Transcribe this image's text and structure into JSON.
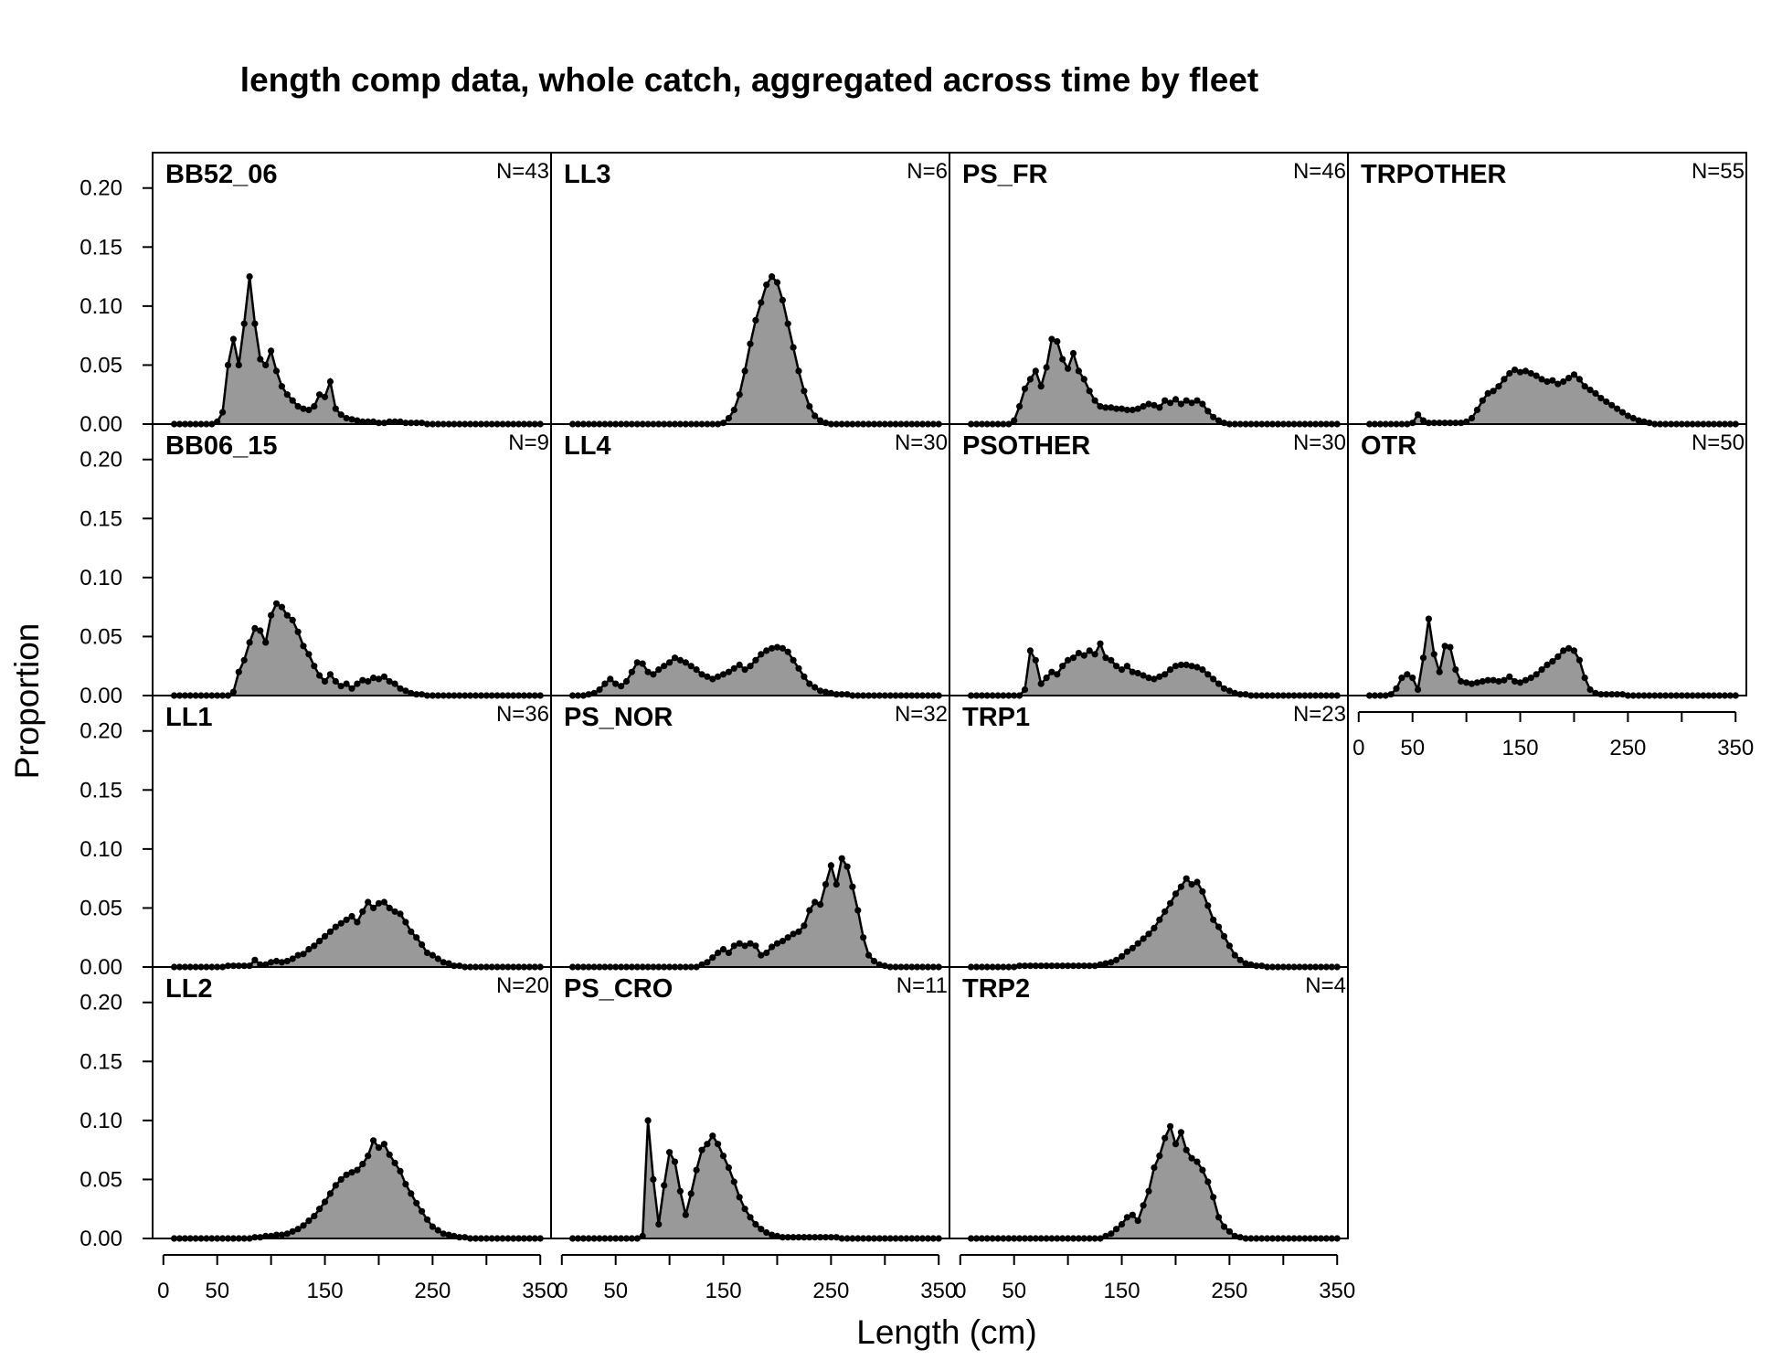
{
  "chart_data": {
    "type": "area",
    "title": "length comp data, whole catch, aggregated across time by fleet",
    "xlabel": "Length (cm)",
    "ylabel": "Proportion",
    "xlim": [
      -10,
      360
    ],
    "ylim": [
      0,
      0.23
    ],
    "x_ticks": [
      0,
      50,
      150,
      250,
      350
    ],
    "y_ticks": [
      "0.00",
      "0.05",
      "0.10",
      "0.15",
      "0.20"
    ],
    "fill_color": "#999999",
    "line_color": "#000000",
    "layout": "4x4 grid, panels filled column-wise",
    "panels": [
      {
        "name": "BB52_06",
        "n_label": "N=43",
        "row": 0,
        "col": 0,
        "x_start": 10,
        "x_step": 5,
        "values": [
          0,
          0,
          0,
          0,
          0,
          0,
          0,
          0,
          0.002,
          0.01,
          0.05,
          0.072,
          0.05,
          0.085,
          0.125,
          0.085,
          0.055,
          0.05,
          0.062,
          0.045,
          0.032,
          0.025,
          0.02,
          0.015,
          0.013,
          0.012,
          0.015,
          0.025,
          0.023,
          0.036,
          0.013,
          0.008,
          0.005,
          0.004,
          0.003,
          0.002,
          0.002,
          0.002,
          0.001,
          0.001,
          0.002,
          0.002,
          0.002,
          0.001,
          0.001,
          0.001,
          0.001,
          0,
          0,
          0,
          0,
          0,
          0,
          0,
          0,
          0,
          0,
          0,
          0,
          0,
          0,
          0,
          0,
          0,
          0,
          0,
          0,
          0,
          0
        ]
      },
      {
        "name": "BB06_15",
        "n_label": "N=9",
        "row": 1,
        "col": 0,
        "x_start": 10,
        "x_step": 5,
        "values": [
          0,
          0,
          0,
          0,
          0,
          0,
          0,
          0,
          0,
          0,
          0,
          0.003,
          0.02,
          0.03,
          0.045,
          0.057,
          0.055,
          0.045,
          0.068,
          0.078,
          0.075,
          0.068,
          0.064,
          0.054,
          0.042,
          0.035,
          0.025,
          0.017,
          0.012,
          0.018,
          0.012,
          0.008,
          0.01,
          0.006,
          0.01,
          0.013,
          0.012,
          0.015,
          0.014,
          0.016,
          0.012,
          0.01,
          0.006,
          0.004,
          0.002,
          0.001,
          0.001,
          0,
          0,
          0,
          0,
          0,
          0,
          0,
          0,
          0,
          0,
          0,
          0,
          0,
          0,
          0,
          0,
          0,
          0,
          0,
          0,
          0,
          0
        ]
      },
      {
        "name": "LL1",
        "n_label": "N=36",
        "row": 2,
        "col": 0,
        "x_start": 10,
        "x_step": 5,
        "values": [
          0,
          0,
          0,
          0,
          0,
          0,
          0,
          0,
          0,
          0,
          0.001,
          0.001,
          0.001,
          0.001,
          0.001,
          0.006,
          0.002,
          0.002,
          0.004,
          0.005,
          0.004,
          0.005,
          0.007,
          0.01,
          0.011,
          0.015,
          0.018,
          0.022,
          0.026,
          0.03,
          0.034,
          0.037,
          0.04,
          0.043,
          0.038,
          0.047,
          0.055,
          0.05,
          0.054,
          0.055,
          0.05,
          0.047,
          0.045,
          0.038,
          0.03,
          0.025,
          0.019,
          0.012,
          0.01,
          0.007,
          0.004,
          0.003,
          0.001,
          0.001,
          0,
          0,
          0,
          0,
          0,
          0,
          0,
          0,
          0,
          0,
          0,
          0,
          0,
          0,
          0
        ]
      },
      {
        "name": "LL2",
        "n_label": "N=20",
        "row": 3,
        "col": 0,
        "x_start": 10,
        "x_step": 5,
        "values": [
          0,
          0,
          0,
          0,
          0,
          0,
          0,
          0,
          0,
          0,
          0,
          0,
          0,
          0,
          0,
          0.001,
          0.001,
          0.002,
          0.002,
          0.003,
          0.003,
          0.004,
          0.006,
          0.008,
          0.011,
          0.015,
          0.019,
          0.025,
          0.031,
          0.038,
          0.045,
          0.05,
          0.054,
          0.056,
          0.058,
          0.063,
          0.07,
          0.083,
          0.077,
          0.08,
          0.071,
          0.064,
          0.057,
          0.046,
          0.038,
          0.03,
          0.023,
          0.016,
          0.01,
          0.007,
          0.004,
          0.003,
          0.002,
          0.001,
          0.001,
          0,
          0,
          0,
          0,
          0,
          0,
          0,
          0,
          0,
          0,
          0,
          0,
          0,
          0
        ]
      },
      {
        "name": "LL3",
        "n_label": "N=6",
        "row": 0,
        "col": 1,
        "x_start": 10,
        "x_step": 5,
        "values": [
          0,
          0,
          0,
          0,
          0,
          0,
          0,
          0,
          0,
          0,
          0,
          0,
          0,
          0,
          0,
          0,
          0,
          0,
          0,
          0,
          0,
          0,
          0,
          0,
          0,
          0,
          0,
          0,
          0.001,
          0.005,
          0.012,
          0.025,
          0.045,
          0.068,
          0.088,
          0.103,
          0.118,
          0.125,
          0.12,
          0.105,
          0.085,
          0.065,
          0.045,
          0.028,
          0.015,
          0.007,
          0.003,
          0.001,
          0,
          0,
          0,
          0,
          0,
          0,
          0,
          0,
          0,
          0,
          0,
          0,
          0,
          0,
          0,
          0,
          0,
          0,
          0,
          0,
          0
        ]
      },
      {
        "name": "LL4",
        "n_label": "N=30",
        "row": 1,
        "col": 1,
        "x_start": 10,
        "x_step": 5,
        "values": [
          0,
          0,
          0,
          0.001,
          0.002,
          0.005,
          0.01,
          0.014,
          0.01,
          0.008,
          0.012,
          0.02,
          0.028,
          0.027,
          0.02,
          0.018,
          0.022,
          0.025,
          0.028,
          0.032,
          0.03,
          0.028,
          0.025,
          0.022,
          0.018,
          0.016,
          0.014,
          0.016,
          0.018,
          0.02,
          0.023,
          0.026,
          0.022,
          0.025,
          0.03,
          0.035,
          0.038,
          0.04,
          0.041,
          0.04,
          0.037,
          0.03,
          0.023,
          0.016,
          0.01,
          0.007,
          0.004,
          0.003,
          0.002,
          0.001,
          0.001,
          0.001,
          0,
          0,
          0,
          0,
          0,
          0,
          0,
          0,
          0,
          0,
          0,
          0,
          0,
          0,
          0,
          0,
          0
        ]
      },
      {
        "name": "PS_NOR",
        "n_label": "N=32",
        "row": 2,
        "col": 1,
        "x_start": 10,
        "x_step": 5,
        "values": [
          0,
          0,
          0,
          0,
          0,
          0,
          0,
          0,
          0,
          0,
          0,
          0,
          0,
          0,
          0,
          0,
          0,
          0,
          0,
          0,
          0,
          0,
          0,
          0,
          0.002,
          0.004,
          0.008,
          0.012,
          0.015,
          0.012,
          0.018,
          0.02,
          0.018,
          0.02,
          0.018,
          0.01,
          0.012,
          0.017,
          0.02,
          0.022,
          0.025,
          0.028,
          0.03,
          0.035,
          0.048,
          0.055,
          0.053,
          0.07,
          0.086,
          0.07,
          0.092,
          0.085,
          0.068,
          0.048,
          0.025,
          0.01,
          0.005,
          0.002,
          0.001,
          0,
          0,
          0,
          0,
          0,
          0,
          0,
          0,
          0,
          0
        ]
      },
      {
        "name": "PS_CRO",
        "n_label": "N=11",
        "row": 3,
        "col": 1,
        "x_start": 10,
        "x_step": 5,
        "values": [
          0,
          0,
          0,
          0,
          0,
          0,
          0,
          0,
          0,
          0,
          0,
          0,
          0,
          0.002,
          0.1,
          0.05,
          0.012,
          0.045,
          0.073,
          0.065,
          0.04,
          0.02,
          0.038,
          0.058,
          0.075,
          0.08,
          0.087,
          0.08,
          0.07,
          0.06,
          0.048,
          0.035,
          0.025,
          0.018,
          0.012,
          0.008,
          0.005,
          0.003,
          0.002,
          0.001,
          0.001,
          0.001,
          0.001,
          0.001,
          0.001,
          0.001,
          0.001,
          0.001,
          0.001,
          0.001,
          0,
          0,
          0,
          0,
          0,
          0,
          0,
          0,
          0,
          0,
          0,
          0,
          0,
          0,
          0,
          0,
          0,
          0,
          0
        ]
      },
      {
        "name": "PS_FR",
        "n_label": "N=46",
        "row": 0,
        "col": 2,
        "x_start": 10,
        "x_step": 5,
        "values": [
          0,
          0,
          0,
          0,
          0,
          0,
          0,
          0,
          0.003,
          0.015,
          0.03,
          0.038,
          0.045,
          0.032,
          0.048,
          0.072,
          0.07,
          0.055,
          0.047,
          0.06,
          0.045,
          0.038,
          0.028,
          0.02,
          0.015,
          0.014,
          0.014,
          0.013,
          0.013,
          0.012,
          0.012,
          0.013,
          0.015,
          0.017,
          0.016,
          0.014,
          0.02,
          0.018,
          0.021,
          0.017,
          0.02,
          0.018,
          0.02,
          0.017,
          0.011,
          0.006,
          0.003,
          0.001,
          0,
          0,
          0,
          0,
          0,
          0,
          0,
          0,
          0,
          0,
          0,
          0,
          0,
          0,
          0,
          0,
          0,
          0,
          0,
          0,
          0
        ]
      },
      {
        "name": "PSOTHER",
        "n_label": "N=30",
        "row": 1,
        "col": 2,
        "x_start": 10,
        "x_step": 5,
        "values": [
          0,
          0,
          0,
          0,
          0,
          0,
          0,
          0,
          0,
          0,
          0.005,
          0.038,
          0.03,
          0.01,
          0.015,
          0.02,
          0.018,
          0.025,
          0.03,
          0.032,
          0.036,
          0.034,
          0.038,
          0.035,
          0.044,
          0.032,
          0.03,
          0.025,
          0.022,
          0.025,
          0.02,
          0.019,
          0.017,
          0.015,
          0.014,
          0.016,
          0.018,
          0.022,
          0.025,
          0.026,
          0.026,
          0.025,
          0.024,
          0.022,
          0.018,
          0.014,
          0.01,
          0.006,
          0.004,
          0.002,
          0.001,
          0.001,
          0,
          0,
          0,
          0,
          0,
          0,
          0,
          0,
          0,
          0,
          0,
          0,
          0,
          0,
          0,
          0,
          0
        ]
      },
      {
        "name": "TRP1",
        "n_label": "N=23",
        "row": 2,
        "col": 2,
        "x_start": 10,
        "x_step": 5,
        "values": [
          0,
          0,
          0,
          0,
          0,
          0,
          0,
          0,
          0,
          0.001,
          0.001,
          0.001,
          0.001,
          0.001,
          0.001,
          0.001,
          0.001,
          0.001,
          0.001,
          0.001,
          0.001,
          0.001,
          0.001,
          0.001,
          0.002,
          0.003,
          0.004,
          0.006,
          0.009,
          0.013,
          0.016,
          0.02,
          0.024,
          0.028,
          0.033,
          0.04,
          0.047,
          0.054,
          0.062,
          0.068,
          0.075,
          0.07,
          0.072,
          0.064,
          0.052,
          0.04,
          0.034,
          0.026,
          0.018,
          0.01,
          0.006,
          0.003,
          0.002,
          0.001,
          0.001,
          0,
          0,
          0,
          0,
          0,
          0,
          0,
          0,
          0,
          0,
          0,
          0,
          0,
          0
        ]
      },
      {
        "name": "TRP2",
        "n_label": "N=4",
        "row": 3,
        "col": 2,
        "x_start": 10,
        "x_step": 5,
        "values": [
          0,
          0,
          0,
          0,
          0,
          0,
          0,
          0,
          0,
          0,
          0,
          0,
          0,
          0,
          0,
          0,
          0,
          0,
          0,
          0,
          0,
          0,
          0,
          0,
          0,
          0.002,
          0.004,
          0.008,
          0.012,
          0.018,
          0.02,
          0.015,
          0.028,
          0.04,
          0.06,
          0.07,
          0.085,
          0.095,
          0.08,
          0.09,
          0.075,
          0.068,
          0.065,
          0.058,
          0.048,
          0.035,
          0.018,
          0.01,
          0.006,
          0.002,
          0.001,
          0,
          0,
          0,
          0,
          0,
          0,
          0,
          0,
          0,
          0,
          0,
          0,
          0,
          0,
          0,
          0,
          0,
          0
        ]
      },
      {
        "name": "TRPOTHER",
        "n_label": "N=55",
        "row": 0,
        "col": 3,
        "x_start": 10,
        "x_step": 5,
        "values": [
          0,
          0,
          0,
          0,
          0,
          0,
          0,
          0,
          0.001,
          0.008,
          0.003,
          0.001,
          0.001,
          0.001,
          0.001,
          0.001,
          0.001,
          0.001,
          0.002,
          0.005,
          0.012,
          0.02,
          0.026,
          0.028,
          0.032,
          0.038,
          0.043,
          0.046,
          0.044,
          0.045,
          0.043,
          0.041,
          0.038,
          0.036,
          0.037,
          0.034,
          0.036,
          0.039,
          0.042,
          0.038,
          0.032,
          0.029,
          0.026,
          0.022,
          0.019,
          0.016,
          0.013,
          0.01,
          0.007,
          0.005,
          0.003,
          0.002,
          0.001,
          0,
          0,
          0,
          0,
          0,
          0,
          0,
          0,
          0,
          0,
          0,
          0,
          0,
          0,
          0,
          0
        ]
      },
      {
        "name": "OTR",
        "n_label": "N=50",
        "row": 1,
        "col": 3,
        "x_start": 10,
        "x_step": 5,
        "values": [
          0,
          0,
          0,
          0,
          0.001,
          0.006,
          0.015,
          0.018,
          0.015,
          0.005,
          0.032,
          0.065,
          0.035,
          0.02,
          0.042,
          0.041,
          0.022,
          0.012,
          0.011,
          0.01,
          0.011,
          0.012,
          0.013,
          0.013,
          0.012,
          0.013,
          0.016,
          0.012,
          0.011,
          0.013,
          0.015,
          0.018,
          0.022,
          0.026,
          0.029,
          0.033,
          0.038,
          0.04,
          0.038,
          0.03,
          0.015,
          0.005,
          0.002,
          0.001,
          0.001,
          0.001,
          0.001,
          0.001,
          0,
          0,
          0,
          0,
          0,
          0,
          0,
          0,
          0,
          0,
          0,
          0,
          0,
          0,
          0,
          0,
          0,
          0,
          0,
          0,
          0
        ]
      }
    ]
  }
}
